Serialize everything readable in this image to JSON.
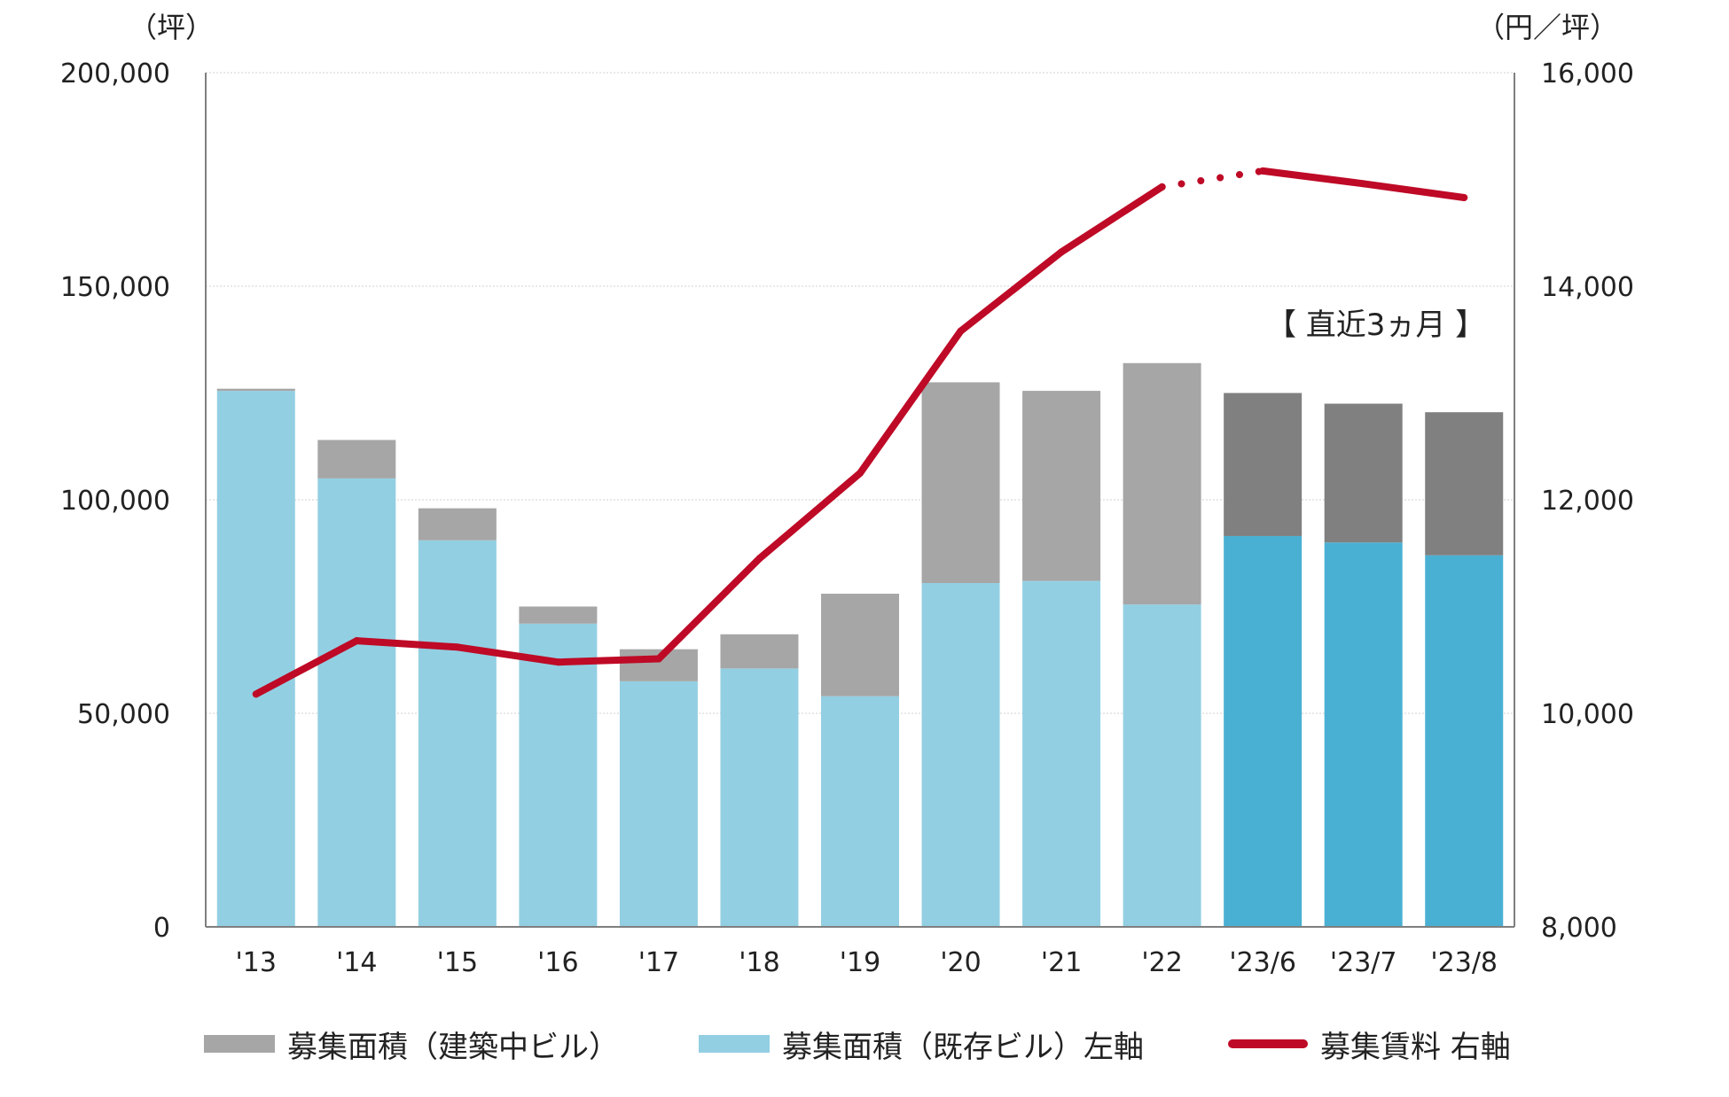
{
  "chart_data": {
    "type": "bar",
    "stacked": true,
    "categories": [
      "'13",
      "'14",
      "'15",
      "'16",
      "'17",
      "'18",
      "'19",
      "'20",
      "'21",
      "'22",
      "'23/6",
      "'23/7",
      "'23/8"
    ],
    "left_unit": "（坪）",
    "right_unit": "（円／坪）",
    "left_ylim": [
      0,
      200000
    ],
    "left_ticks": [
      "0",
      "50,000",
      "100,000",
      "150,000",
      "200,000"
    ],
    "right_ylim": [
      8000,
      16000
    ],
    "right_ticks": [
      "8,000",
      "10,000",
      "12,000",
      "14,000",
      "16,000"
    ],
    "grid": true,
    "series": [
      {
        "name": "募集面積（既存ビル）左軸",
        "axis": "left",
        "kind": "bar",
        "values": [
          125500,
          105000,
          90500,
          71000,
          57500,
          60500,
          54000,
          80500,
          81000,
          75500,
          91500,
          90000,
          87000
        ]
      },
      {
        "name": "募集面積（建築中ビル）",
        "axis": "left",
        "kind": "bar",
        "values": [
          500,
          9000,
          7500,
          4000,
          7500,
          8000,
          24000,
          47000,
          44500,
          56500,
          33500,
          32500,
          33500
        ]
      },
      {
        "name": "募集賃料 右軸",
        "axis": "right",
        "kind": "line",
        "values": [
          10180,
          10680,
          10620,
          10480,
          10510,
          11450,
          12250,
          13580,
          14320,
          14930,
          15080,
          14960,
          14830
        ]
      }
    ],
    "annotations": [
      {
        "text": "【 直近3ヵ月 】"
      }
    ],
    "legend_position": "bottom",
    "colors": {
      "existing_bar": "#93cfe2",
      "existing_bar_recent": "#4ab0d3",
      "construction_bar": "#a6a6a6",
      "construction_bar_recent": "#808080",
      "rent_line": "#be0a26",
      "grid": "#d9d9d9",
      "axis": "#7f7f7f"
    }
  },
  "legend": {
    "items": [
      {
        "label": "募集面積（建築中ビル）"
      },
      {
        "label": "募集面積（既存ビル）左軸"
      },
      {
        "label": "募集賃料 右軸"
      }
    ]
  }
}
